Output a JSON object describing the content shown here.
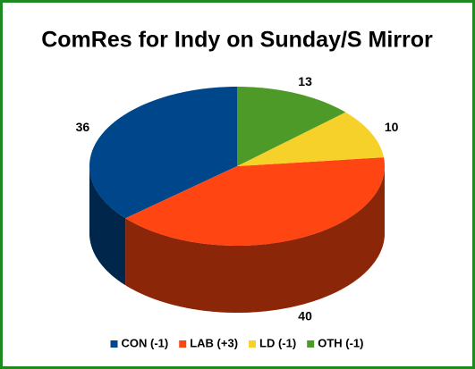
{
  "chart_data": {
    "type": "pie",
    "title": "ComRes for Indy on Sunday/S Mirror",
    "categories": [
      "CON (-1)",
      "LAB (+3)",
      "LD (-1)",
      "OTH (-1)"
    ],
    "values": [
      36,
      40,
      10,
      13
    ],
    "colors": [
      "#00468a",
      "#ff4512",
      "#f6d12a",
      "#4e9a28"
    ]
  }
}
